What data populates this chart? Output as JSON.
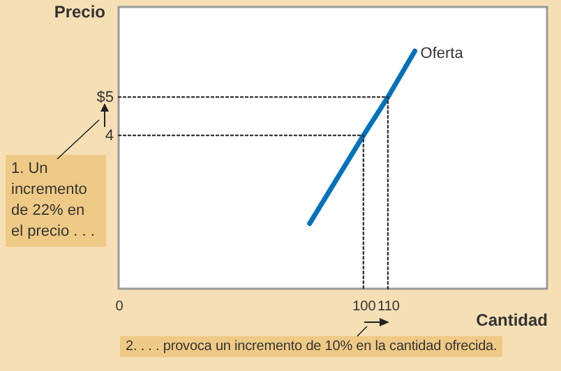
{
  "chart_data": {
    "type": "line",
    "xlabel": "Cantidad",
    "ylabel": "Precio",
    "xlim": [
      0,
      175
    ],
    "ylim": [
      0,
      7.35
    ],
    "xticks": [
      0,
      100,
      110
    ],
    "yticks": [
      4,
      {
        "value": 5,
        "label": "$5"
      }
    ],
    "grid": false,
    "series": [
      {
        "name": "Oferta",
        "color": "#0072bc",
        "x": [
          78,
          100,
          110,
          121
        ],
        "values": [
          1.7,
          4,
          5,
          6.2
        ]
      },
      {
        "color": "#333333",
        "line_style": "dotted",
        "x": [
          0,
          100,
          100
        ],
        "values": [
          4,
          4,
          0
        ]
      },
      {
        "color": "#333333",
        "line_style": "dotted",
        "x": [
          0,
          110,
          110
        ],
        "values": [
          5,
          5,
          0
        ]
      }
    ],
    "annotations": [
      "1. Un incremento de 22% en el precio . . .",
      "2. . . . provoca un incremento de 10% en la cantidad ofrecida."
    ]
  }
}
